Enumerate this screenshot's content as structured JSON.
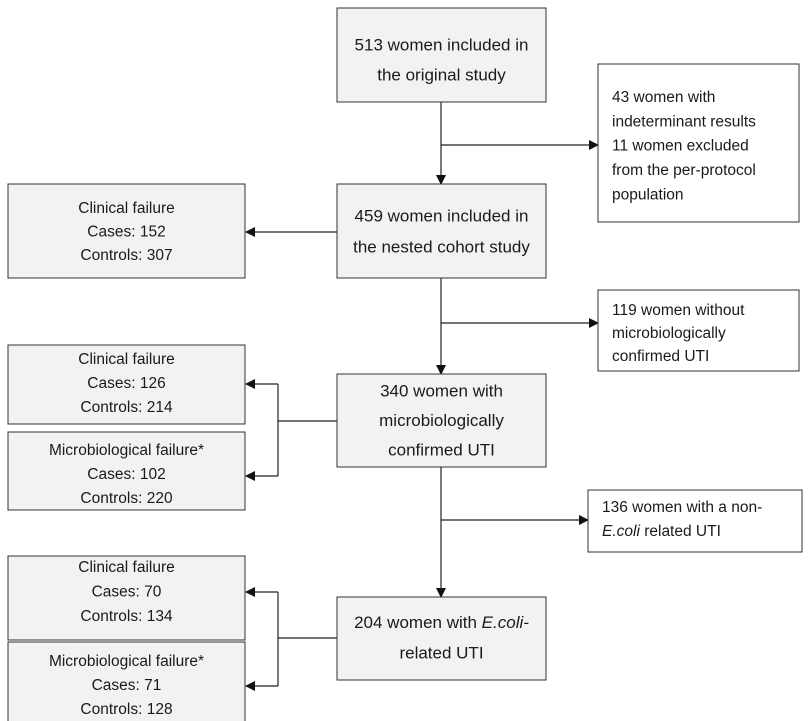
{
  "nodes": [
    {
      "lines": [
        "513 women included in",
        "the original study"
      ]
    },
    {
      "lines": [
        "43 women with",
        "indeterminant results",
        "11 women excluded",
        "from the per-protocol",
        "population"
      ]
    },
    {
      "lines": [
        "459 women included in",
        "the nested cohort study"
      ]
    },
    {
      "lines": [
        "Clinical failure",
        "Cases: 152",
        "Controls: 307"
      ]
    },
    {
      "lines": [
        "119 women without",
        "microbiologically",
        "confirmed UTI"
      ]
    },
    {
      "lines": [
        "340 women with",
        "microbiologically",
        "confirmed UTI"
      ]
    },
    {
      "lines": [
        "Clinical failure",
        "Cases: 126",
        "Controls: 214"
      ]
    },
    {
      "lines": [
        "Microbiological failure*",
        "Cases: 102",
        "Controls: 220"
      ]
    },
    {
      "lines": [
        "136 women with a non-",
        [
          "",
          {
            "italic": "E.coli"
          },
          " related UTI"
        ]
      ]
    },
    {
      "lines": [
        [
          "204 women with ",
          {
            "italic": "E.coli-"
          }
        ],
        "related UTI"
      ]
    },
    {
      "lines": [
        "Clinical failure",
        "Cases: 70",
        "Controls: 134"
      ]
    },
    {
      "lines": [
        "Microbiological failure*",
        "Cases: 71",
        "Controls: 128"
      ]
    }
  ]
}
